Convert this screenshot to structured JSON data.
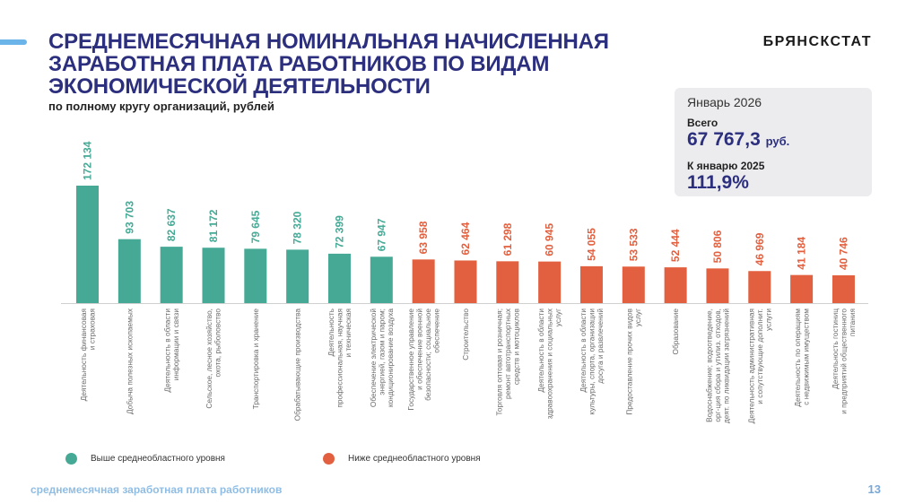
{
  "header": {
    "title_lines": [
      "СРЕДНЕМЕСЯЧНАЯ НОМИНАЛЬНАЯ НАЧИСЛЕННАЯ",
      "ЗАРАБОТНАЯ ПЛАТА РАБОТНИКОВ ПО ВИДАМ",
      "ЭКОНОМИЧЕСКОЙ ДЕЯТЕЛЬНОСТИ"
    ],
    "subtitle": "по полному кругу организаций, рублей",
    "brand": "БРЯНСКСТАТ"
  },
  "infobox": {
    "period": "Январь 2026",
    "total_label": "Всего",
    "total_value": "67 767,3",
    "total_unit": "руб.",
    "yoy_label": "К январю 2025",
    "yoy_value": "111,9%"
  },
  "colors": {
    "above": "#45a996",
    "below": "#e2603f",
    "title": "#2c2f7e"
  },
  "legend": {
    "above_label": "Выше среднеобластного уровня",
    "below_label": "Ниже среднеобластного уровня"
  },
  "footer": {
    "text": "среднемесячная заработная плата работников",
    "page": "13"
  },
  "chart_data": {
    "type": "bar",
    "title": "Среднемесячная номинальная начисленная заработная плата работников по видам экономической деятельности",
    "subtitle": "по полному кругу организаций, рублей",
    "xlabel": "",
    "ylabel": "рублей",
    "ylim": [
      0,
      172134
    ],
    "grid": false,
    "legend_position": "bottom",
    "reference_value": 67767.3,
    "categories": [
      [
        "Деятельность финансовая",
        "и страховая"
      ],
      [
        "Добыча полезных ископаемых"
      ],
      [
        "Деятельность в области",
        "информации и связи"
      ],
      [
        "Сельское, лесное хозяйство,",
        "охота, рыболовство"
      ],
      [
        "Транспортировка и хранение"
      ],
      [
        "Обрабатывающие производства"
      ],
      [
        "Деятельность",
        "профессиональная, научная",
        "и техническая"
      ],
      [
        "Обеспечение электрической",
        "энергией, газом и паром;",
        "кондиционирование воздуха"
      ],
      [
        "Государственное управление",
        "и обеспечение военной",
        "безопасности; социальное",
        "обеспечение"
      ],
      [
        "Строительство"
      ],
      [
        "Торговля оптовая и розничная;",
        "ремонт автотранспортных",
        "средств и мотоциклов"
      ],
      [
        "Деятельность в области",
        "здравоохранения и социальных",
        "услуг"
      ],
      [
        "Деятельность в области",
        "культуры, спорта, организации",
        "досуга и развлечений"
      ],
      [
        "Предоставление прочих видов",
        "услуг"
      ],
      [
        "Образование"
      ],
      [
        "Водоснабжение; водоотведение,",
        "орг-ция сбора и утилиз. отходов,",
        "деят. по ликвидации загрязнений"
      ],
      [
        "Деятельность административная",
        "и сопутствующие дополнит.",
        "услуги"
      ],
      [
        "Деятельность по операциям",
        "с недвижимым имуществом"
      ],
      [
        "Деятельность гостиниц",
        "и предприятий общественного",
        "питания"
      ]
    ],
    "values": [
      172134,
      93703,
      82637,
      81172,
      79645,
      78320,
      72399,
      67947,
      63958,
      62464,
      61298,
      60945,
      54055,
      53533,
      52444,
      50806,
      46969,
      41184,
      40746
    ],
    "value_labels": [
      "172 134",
      "93 703",
      "82 637",
      "81 172",
      "79 645",
      "78 320",
      "72 399",
      "67 947",
      "63 958",
      "62 464",
      "61 298",
      "60 945",
      "54 055",
      "53 533",
      "52 444",
      "50 806",
      "46 969",
      "41 184",
      "40 746"
    ],
    "groups": [
      "above",
      "above",
      "above",
      "above",
      "above",
      "above",
      "above",
      "above",
      "below",
      "below",
      "below",
      "below",
      "below",
      "below",
      "below",
      "below",
      "below",
      "below",
      "below"
    ],
    "series": [
      {
        "name": "Выше среднеобластного уровня",
        "group": "above"
      },
      {
        "name": "Ниже среднеобластного уровня",
        "group": "below"
      }
    ]
  }
}
